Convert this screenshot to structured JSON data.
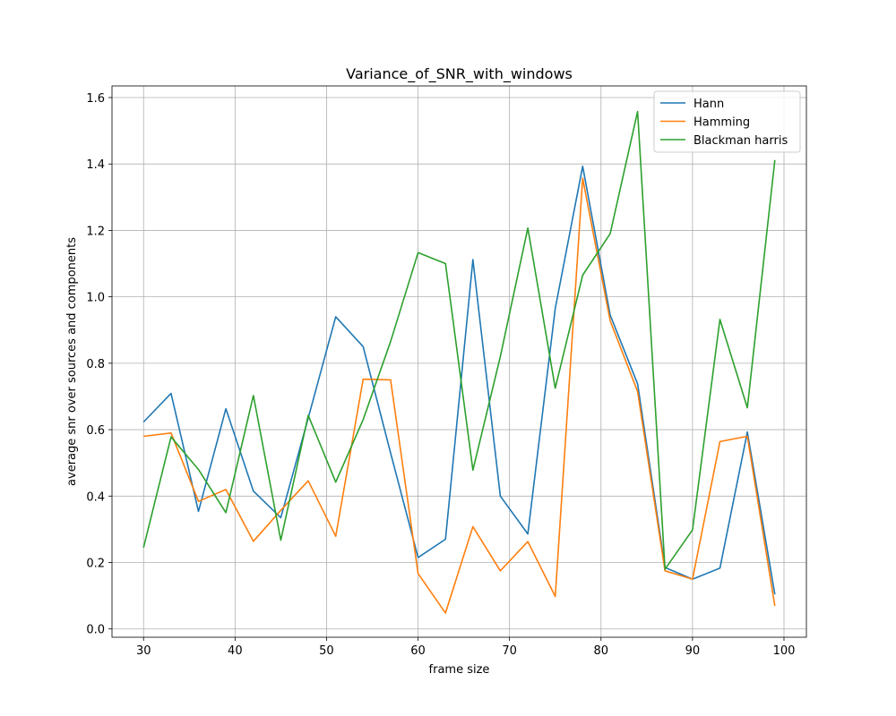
{
  "chart_data": {
    "type": "line",
    "title": "Variance_of_SNR_with_windows",
    "xlabel": "frame size",
    "ylabel": "average snr over sources and components",
    "xlim": [
      26.55,
      102.45
    ],
    "ylim": [
      -0.025,
      1.635
    ],
    "xticks": [
      30,
      40,
      50,
      60,
      70,
      80,
      90,
      100
    ],
    "xtick_labels": [
      "30",
      "40",
      "50",
      "60",
      "70",
      "80",
      "90",
      "100"
    ],
    "yticks": [
      0.0,
      0.2,
      0.4,
      0.6,
      0.8,
      1.0,
      1.2,
      1.4,
      1.6
    ],
    "ytick_labels": [
      "0.0",
      "0.2",
      "0.4",
      "0.6",
      "0.8",
      "1.0",
      "1.2",
      "1.4",
      "1.6"
    ],
    "grid": true,
    "legend_position": "top-right",
    "x": [
      30,
      33,
      36,
      39,
      42,
      45,
      48,
      51,
      54,
      57,
      60,
      63,
      66,
      69,
      72,
      75,
      78,
      81,
      84,
      87,
      90,
      93,
      96,
      99
    ],
    "series": [
      {
        "name": "Hann",
        "color": "#1f77b4",
        "values": [
          0.623,
          0.709,
          0.354,
          0.663,
          0.415,
          0.335,
          0.635,
          0.94,
          0.85,
          0.53,
          0.215,
          0.27,
          1.112,
          0.4,
          0.286,
          0.965,
          1.393,
          0.945,
          0.738,
          0.185,
          0.15,
          0.183,
          0.593,
          0.104
        ]
      },
      {
        "name": "Hamming",
        "color": "#ff7f0e",
        "values": [
          0.58,
          0.59,
          0.384,
          0.42,
          0.264,
          0.357,
          0.446,
          0.279,
          0.752,
          0.75,
          0.167,
          0.048,
          0.308,
          0.175,
          0.263,
          0.098,
          1.357,
          0.928,
          0.715,
          0.175,
          0.15,
          0.564,
          0.58,
          0.069
        ]
      },
      {
        "name": "Blackman harris",
        "color": "#2ca02c",
        "values": [
          0.245,
          0.578,
          0.48,
          0.35,
          0.703,
          0.267,
          0.643,
          0.442,
          0.63,
          0.865,
          1.133,
          1.1,
          0.478,
          0.82,
          1.207,
          0.725,
          1.065,
          1.19,
          1.558,
          0.18,
          0.298,
          0.932,
          0.666,
          1.412
        ]
      }
    ]
  }
}
